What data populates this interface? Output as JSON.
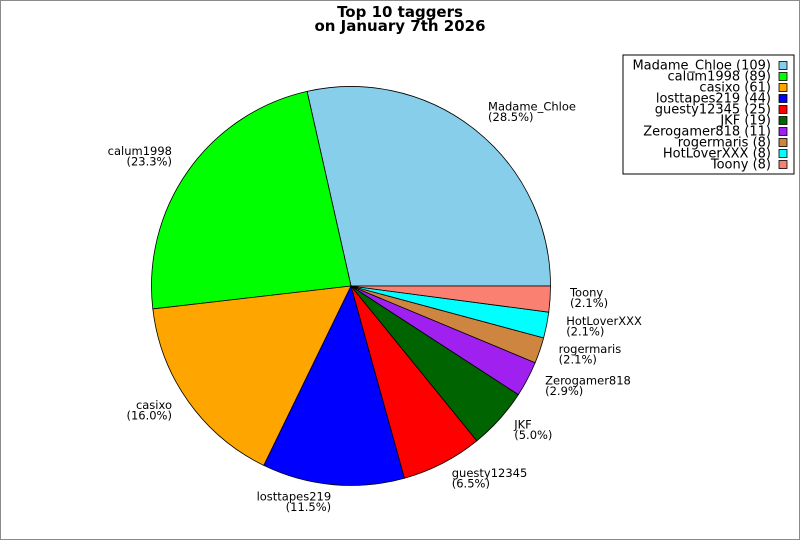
{
  "chart_data": {
    "type": "pie",
    "title": [
      "Top 10 taggers",
      "on January 7th 2026"
    ],
    "legend_placement": "top-right",
    "slices": [
      {
        "label": "Madame_Chloe",
        "value": 109,
        "percent": "28.5%",
        "legend": "Madame_Chloe (109)",
        "color": "#87CEEB"
      },
      {
        "label": "calum1998",
        "value": 89,
        "percent": "23.3%",
        "legend": "calum1998 (89)",
        "color": "#00FF00"
      },
      {
        "label": "casixo",
        "value": 61,
        "percent": "16.0%",
        "legend": "casixo (61)",
        "color": "#FFA500"
      },
      {
        "label": "losttapes219",
        "value": 44,
        "percent": "11.5%",
        "legend": "losttapes219 (44)",
        "color": "#0000FF"
      },
      {
        "label": "guesty12345",
        "value": 25,
        "percent": "6.5%",
        "legend": "guesty12345 (25)",
        "color": "#FF0000"
      },
      {
        "label": "JKF",
        "value": 19,
        "percent": "5.0%",
        "legend": "JKF (19)",
        "color": "#006400"
      },
      {
        "label": "Zerogamer818",
        "value": 11,
        "percent": "2.9%",
        "legend": "Zerogamer818 (11)",
        "color": "#A020F0"
      },
      {
        "label": "rogermaris",
        "value": 8,
        "percent": "2.1%",
        "legend": "rogermaris (8)",
        "color": "#CD853F"
      },
      {
        "label": "HotLoverXXX",
        "value": 8,
        "percent": "2.1%",
        "legend": "HotLoverXXX (8)",
        "color": "#00FFFF"
      },
      {
        "label": "Toony",
        "value": 8,
        "percent": "2.1%",
        "legend": "Toony (8)",
        "color": "#FA8072"
      }
    ]
  }
}
